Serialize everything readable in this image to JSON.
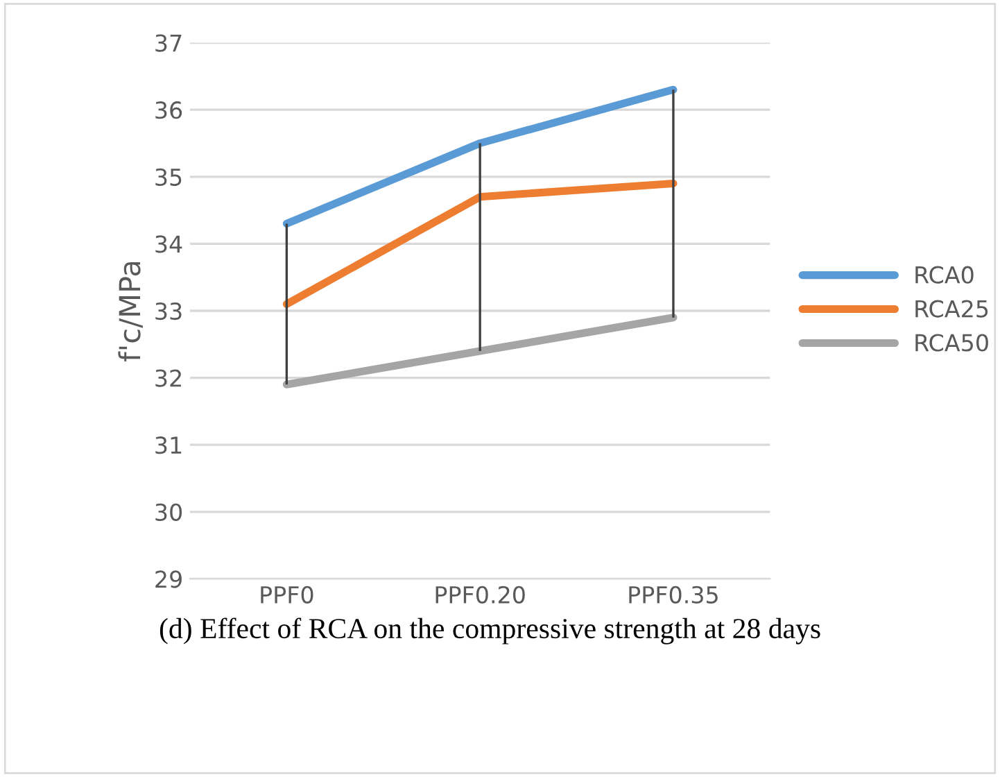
{
  "chart_data": {
    "type": "line",
    "ylabel": "f'c/MPa",
    "categories": [
      "PPF0",
      "PPF0.20",
      "PPF0.35"
    ],
    "series": [
      {
        "name": "RCA0",
        "color": "#5b9bd5",
        "values": [
          34.3,
          35.5,
          36.3
        ],
        "errors": [
          [
            31.9,
            34.3
          ],
          [
            32.4,
            35.5
          ],
          [
            32.9,
            36.3
          ]
        ]
      },
      {
        "name": "RCA25",
        "color": "#ed7d31",
        "values": [
          33.1,
          34.7,
          34.9
        ]
      },
      {
        "name": "RCA50",
        "color": "#a5a5a5",
        "values": [
          31.9,
          32.4,
          32.9
        ]
      }
    ],
    "ylim": [
      29,
      37
    ],
    "yticks": [
      29,
      30,
      31,
      32,
      33,
      34,
      35,
      36,
      37
    ],
    "grid": "y",
    "legend": "right",
    "marker": "none",
    "annotations": [
      "(d) Effect of RCA on the compressive strength at 28 days"
    ]
  }
}
